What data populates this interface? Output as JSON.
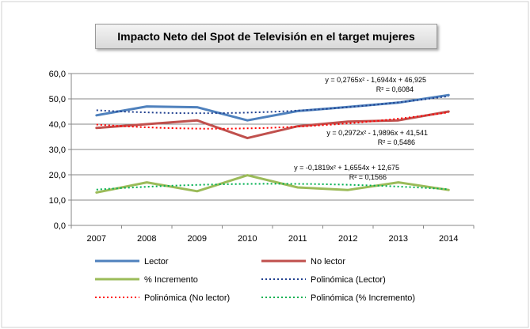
{
  "chart_data": {
    "type": "line",
    "title": "Impacto Neto del Spot de Televisión en el target mujeres",
    "categories": [
      "2007",
      "2008",
      "2009",
      "2010",
      "2011",
      "2012",
      "2013",
      "2014"
    ],
    "ylim": [
      0,
      60
    ],
    "yticks": [
      "0,0",
      "10,0",
      "20,0",
      "30,0",
      "40,0",
      "50,0",
      "60,0"
    ],
    "grid": true,
    "legend_position": "bottom",
    "series": [
      {
        "name": "Lector",
        "values": [
          43.5,
          47.0,
          46.7,
          41.5,
          45.2,
          46.8,
          48.5,
          51.5
        ],
        "color": "#4f81bd",
        "style": "solid"
      },
      {
        "name": "No lector",
        "values": [
          38.5,
          40.0,
          41.5,
          34.5,
          39.2,
          41.0,
          41.5,
          45.0
        ],
        "color": "#c0504d",
        "style": "solid"
      },
      {
        "name": "% Incremento",
        "values": [
          13.0,
          17.0,
          13.5,
          19.8,
          15.0,
          14.0,
          17.0,
          14.0
        ],
        "color": "#9bbb59",
        "style": "solid"
      },
      {
        "name": "Polinómica (Lector)",
        "trend_of": 0,
        "coef": [
          0.2765,
          -1.6944,
          46.925
        ],
        "color": "#1f3f8f",
        "style": "dotted"
      },
      {
        "name": "Polinómica (No lector)",
        "trend_of": 1,
        "coef": [
          0.2972,
          -1.9896,
          41.541
        ],
        "color": "#ff0000",
        "style": "dotted"
      },
      {
        "name": "Polinómica (% Incremento)",
        "trend_of": 2,
        "coef": [
          -0.1819,
          1.6554,
          12.675
        ],
        "color": "#00b050",
        "style": "dotted"
      }
    ],
    "annotations": [
      {
        "equation": "y = 0,2765x² - 1,6944x + 46,925",
        "r2": "R² = 0,6084"
      },
      {
        "equation": "y = 0,2972x² - 1,9896x + 41,541",
        "r2": "R² = 0,5486"
      },
      {
        "equation": "y = -0,1819x² + 1,6554x + 12,675",
        "r2": "R² = 0,1566"
      }
    ]
  }
}
